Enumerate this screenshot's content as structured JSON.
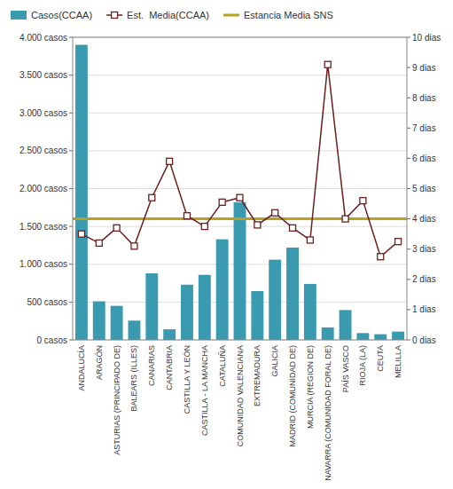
{
  "chart_data": {
    "type": "bar",
    "categories": [
      "ANDALUCÍA",
      "ARAGÓN",
      "ASTURIAS (PRINCIPADO DE)",
      "BALEARS (ILLES)",
      "CANARIAS",
      "CANTABRIA",
      "CASTILLA Y LEÓN",
      "CASTILLA - LA MANCHA",
      "CATALUÑA",
      "COMUNIDAD VALENCIANA",
      "EXTREMADURA",
      "GALICIA",
      "MADRID (COMUNIDAD DE)",
      "MURCIA (REGION DE)",
      "NAVARRA (COMUNIDAD FORAL DE)",
      "PAÍS VASCO",
      "RIOJA (LA)",
      "CEUTA",
      "MELILLA"
    ],
    "series": [
      {
        "name": "Casos(CCAA)",
        "type": "bar",
        "color": "#3A9AAF",
        "values": [
          3900,
          510,
          450,
          255,
          880,
          140,
          730,
          860,
          1330,
          1820,
          645,
          1060,
          1220,
          740,
          165,
          395,
          90,
          75,
          110
        ]
      },
      {
        "name": "Est.  Media(CCAA)",
        "type": "line",
        "color": "#6B1F1F",
        "marker": "square",
        "axis": "y2",
        "values": [
          3.5,
          3.2,
          3.7,
          3.1,
          4.7,
          5.9,
          4.1,
          3.75,
          4.55,
          4.7,
          3.8,
          4.2,
          3.7,
          3.3,
          9.1,
          4.0,
          4.6,
          2.75,
          3.25
        ]
      }
    ],
    "hlines": [
      {
        "name": "Estancia Media SNS",
        "value": 4.0,
        "color": "#B8A020",
        "axis": "y2"
      }
    ],
    "ylim": [
      0,
      4000
    ],
    "yticks": [
      {
        "value": 0,
        "label": "0 casos"
      },
      {
        "value": 500,
        "label": "500 casos"
      },
      {
        "value": 1000,
        "label": "1.000 casos"
      },
      {
        "value": 1500,
        "label": "1.500 casos"
      },
      {
        "value": 2000,
        "label": "2.000 casos"
      },
      {
        "value": 2500,
        "label": "2.500 casos"
      },
      {
        "value": 3000,
        "label": "3.000 casos"
      },
      {
        "value": 3500,
        "label": "3.500 casos"
      },
      {
        "value": 4000,
        "label": "4.000 casos"
      }
    ],
    "y2lim": [
      0,
      10
    ],
    "y2ticks": [
      {
        "value": 0,
        "label": "0 dias"
      },
      {
        "value": 1,
        "label": "1 dias"
      },
      {
        "value": 2,
        "label": "2 dias"
      },
      {
        "value": 3,
        "label": "3 dias"
      },
      {
        "value": 4,
        "label": "4 dias"
      },
      {
        "value": 5,
        "label": "5 dias"
      },
      {
        "value": 6,
        "label": "6 dias"
      },
      {
        "value": 7,
        "label": "7 dias"
      },
      {
        "value": 8,
        "label": "8 dias"
      },
      {
        "value": 9,
        "label": "9 dias"
      },
      {
        "value": 10,
        "label": "10 dias"
      }
    ],
    "grid": true,
    "legend": "top"
  }
}
